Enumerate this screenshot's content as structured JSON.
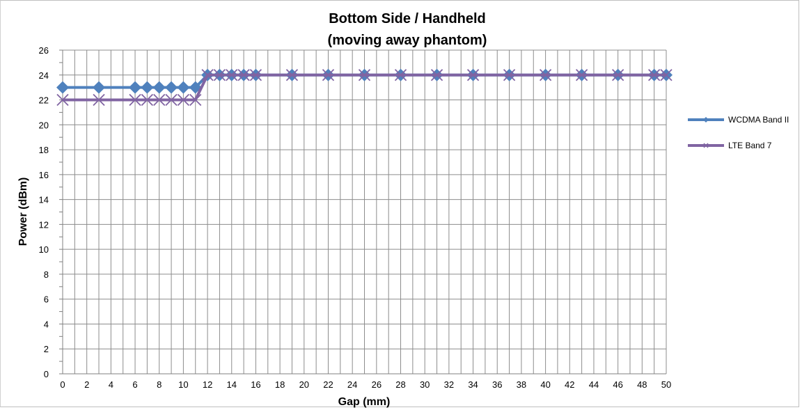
{
  "chart_data": {
    "type": "line",
    "title_line1": "Bottom Side / Handheld",
    "title_line2": "(moving away phantom)",
    "xlabel": "Gap (mm)",
    "ylabel": "Power (dBm)",
    "xlim": [
      0,
      50
    ],
    "ylim": [
      0,
      26
    ],
    "x_ticks": [
      "0",
      "2",
      "4",
      "6",
      "8",
      "10",
      "12",
      "14",
      "16",
      "18",
      "20",
      "22",
      "24",
      "26",
      "28",
      "30",
      "32",
      "34",
      "36",
      "38",
      "40",
      "42",
      "44",
      "46",
      "48",
      "50"
    ],
    "y_ticks": [
      "0",
      "2",
      "4",
      "6",
      "8",
      "10",
      "12",
      "14",
      "16",
      "18",
      "20",
      "22",
      "24",
      "26"
    ],
    "grid": true,
    "legend_position": "right",
    "series": [
      {
        "name": "WCDMA Band II",
        "color": "#4f81bd",
        "marker": "diamond",
        "x": [
          0,
          3,
          6,
          7,
          8,
          9,
          10,
          11,
          12,
          13,
          14,
          15,
          16,
          19,
          22,
          25,
          28,
          31,
          34,
          37,
          40,
          43,
          46,
          49,
          50
        ],
        "y": [
          23,
          23,
          23,
          23,
          23,
          23,
          23,
          23,
          24,
          24,
          24,
          24,
          24,
          24,
          24,
          24,
          24,
          24,
          24,
          24,
          24,
          24,
          24,
          24,
          24
        ]
      },
      {
        "name": "LTE Band 7",
        "color": "#8064a2",
        "marker": "x",
        "x": [
          0,
          3,
          6,
          7,
          8,
          9,
          10,
          11,
          12,
          13,
          14,
          15,
          16,
          19,
          22,
          25,
          28,
          31,
          34,
          37,
          40,
          43,
          46,
          49,
          50
        ],
        "y": [
          22,
          22,
          22,
          22,
          22,
          22,
          22,
          22,
          24,
          24,
          24,
          24,
          24,
          24,
          24,
          24,
          24,
          24,
          24,
          24,
          24,
          24,
          24,
          24,
          24
        ]
      }
    ]
  }
}
